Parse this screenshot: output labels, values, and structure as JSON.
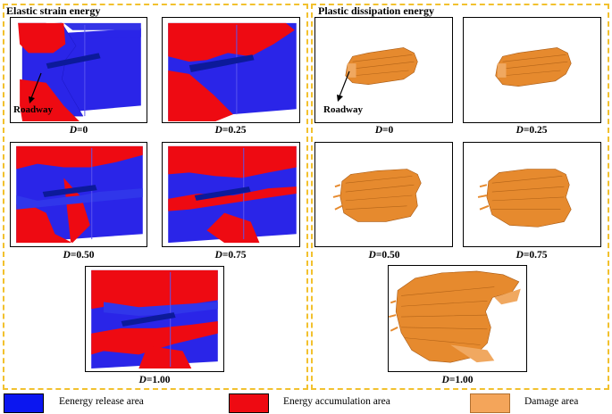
{
  "groups": {
    "elastic": {
      "title": "Elastic strain energy"
    },
    "plastic": {
      "title": "Plastic dissipation energy"
    }
  },
  "elastic_panels": [
    {
      "var": "D",
      "value": "=0",
      "annotation": "Roadway"
    },
    {
      "var": "D",
      "value": "=0.25"
    },
    {
      "var": "D",
      "value": "=0.50"
    },
    {
      "var": "D",
      "value": "=0.75"
    },
    {
      "var": "D",
      "value": "=1.00"
    }
  ],
  "plastic_panels": [
    {
      "var": "D",
      "value": "=0",
      "annotation": "Roadway"
    },
    {
      "var": "D",
      "value": "=0.25"
    },
    {
      "var": "D",
      "value": "=0.50"
    },
    {
      "var": "D",
      "value": "=0.75"
    },
    {
      "var": "D",
      "value": "=1.00"
    }
  ],
  "legend": [
    {
      "label": "Eenergy release area",
      "color": "#0b16f0"
    },
    {
      "label": "Energy accumulation area",
      "color": "#ee0a12"
    },
    {
      "label": "Damage area",
      "color": "#f4a55a"
    }
  ],
  "colors": {
    "frame": "#f2c12e",
    "blue": "#2a25e8",
    "red": "#ee0a12",
    "orange": "#e68a2e"
  }
}
